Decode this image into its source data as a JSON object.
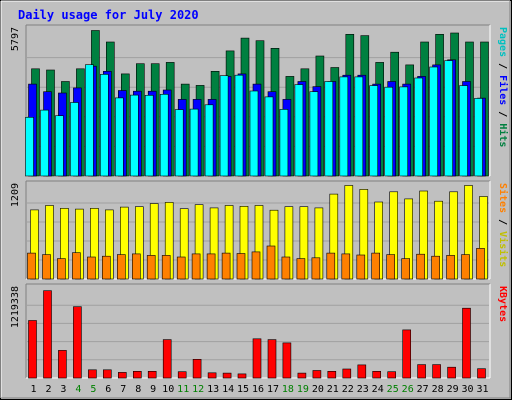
{
  "chart_data": {
    "type": "bar",
    "title": "Daily usage for July 2020",
    "days": [
      "1",
      "2",
      "3",
      "4",
      "5",
      "6",
      "7",
      "8",
      "9",
      "10",
      "11",
      "12",
      "13",
      "14",
      "15",
      "16",
      "17",
      "18",
      "19",
      "20",
      "21",
      "22",
      "23",
      "24",
      "25",
      "26",
      "27",
      "28",
      "29",
      "30",
      "31"
    ],
    "weekend_days": [
      "4",
      "5",
      "11",
      "12",
      "18",
      "19",
      "25",
      "26"
    ],
    "panels": [
      {
        "key": "hits_panel",
        "ymax_label": "5797",
        "ymax": 5797,
        "series": [
          {
            "name": "Hits",
            "color": "#008040",
            "values": [
              4200,
              4150,
              3700,
              4200,
              5700,
              5250,
              4000,
              4400,
              4400,
              4450,
              3600,
              3550,
              4100,
              4900,
              5400,
              5300,
              5000,
              3900,
              4200,
              4700,
              4250,
              5550,
              5500,
              4450,
              4850,
              4350,
              5250,
              5550,
              5600,
              5250,
              5250
            ]
          },
          {
            "name": "Files",
            "color": "#0000ff",
            "values": [
              3600,
              3300,
              3250,
              3450,
              4300,
              4100,
              3350,
              3320,
              3320,
              3370,
              3000,
              3000,
              3000,
              3900,
              4000,
              3600,
              3300,
              3000,
              3700,
              3500,
              3700,
              3950,
              3950,
              3600,
              3700,
              3600,
              3900,
              4350,
              4550,
              3700,
              3050
            ]
          },
          {
            "name": "Pages",
            "color": "#00ffff",
            "values": [
              2300,
              2580,
              2360,
              2880,
              4360,
              3980,
              3060,
              3170,
              3160,
              3200,
              2600,
              2620,
              2790,
              3930,
              3950,
              3330,
              3100,
              2610,
              3580,
              3300,
              3700,
              3880,
              3880,
              3540,
              3480,
              3490,
              3840,
              4270,
              4520,
              3540,
              3040
            ]
          }
        ]
      },
      {
        "key": "visits_panel",
        "ymax_label": "1209",
        "ymax": 1209,
        "series": [
          {
            "name": "Visits",
            "color": "#ffff00",
            "values": [
              880,
              935,
              900,
              890,
              900,
              880,
              915,
              920,
              960,
              975,
              895,
              945,
              905,
              935,
              925,
              935,
              875,
              920,
              920,
              905,
              1080,
              1190,
              1140,
              980,
              1110,
              1020,
              1120,
              990,
              1110,
              1190,
              1050
            ]
          },
          {
            "name": "Sites",
            "color": "#ff8000",
            "values": [
              330,
              310,
              260,
              335,
              280,
              290,
              310,
              320,
              300,
              300,
              280,
              320,
              320,
              330,
              325,
              345,
              420,
              280,
              260,
              270,
              330,
              320,
              305,
              330,
              310,
              260,
              315,
              290,
              300,
              310,
              390
            ]
          }
        ]
      },
      {
        "key": "kbytes_panel",
        "ymax_label": "1219338",
        "ymax": 1219338,
        "series": [
          {
            "name": "KBytes",
            "color": "#ff0000",
            "values": [
              770000,
              1170000,
              370000,
              955000,
              110000,
              110000,
              75000,
              90000,
              90000,
              515000,
              85000,
              250000,
              70000,
              65000,
              55000,
              525000,
              515000,
              470000,
              65000,
              100000,
              90000,
              120000,
              175000,
              90000,
              85000,
              645000,
              180000,
              180000,
              145000,
              935000,
              125000
            ]
          }
        ]
      }
    ],
    "legend_right": {
      "hits_panel": [
        {
          "text": "Pages",
          "color": "#00c0c0"
        },
        {
          "text": " / ",
          "color": "#000000"
        },
        {
          "text": "Files",
          "color": "#0000ff"
        },
        {
          "text": " / ",
          "color": "#000000"
        },
        {
          "text": "Hits",
          "color": "#008040"
        }
      ],
      "visits_panel": [
        {
          "text": "Sites",
          "color": "#ff8000"
        },
        {
          "text": " / ",
          "color": "#000000"
        },
        {
          "text": "Visits",
          "color": "#c0c000"
        }
      ],
      "kbytes_panel": [
        {
          "text": "KBytes",
          "color": "#ff0000"
        }
      ]
    },
    "colors": {
      "background": "#c0c0c0",
      "title": "#0000ff",
      "gridline": "#808080",
      "weekday_label": "#000000",
      "weekend_label": "#008000"
    }
  }
}
